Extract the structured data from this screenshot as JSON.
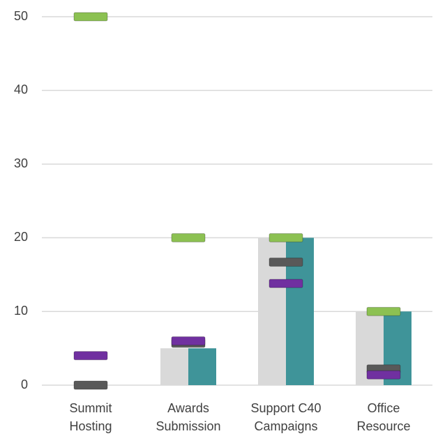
{
  "chart_data": {
    "type": "bar",
    "categories": [
      "Summit Hosting",
      "Awards Submission",
      "Support C40 Campaigns",
      "Office Resource"
    ],
    "series": [
      {
        "style": "bar",
        "color": "#d9d9d9",
        "values": [
          0,
          5,
          20,
          10
        ]
      },
      {
        "style": "bar",
        "color": "#3f9499",
        "values": [
          0,
          5,
          20,
          10
        ]
      },
      {
        "style": "marker",
        "color": "#8cc152",
        "values": [
          50,
          20,
          20,
          10
        ]
      },
      {
        "style": "marker",
        "color": "#595959",
        "values": [
          0,
          5.7,
          16.7,
          2.2
        ]
      },
      {
        "style": "marker",
        "color": "#7030a0",
        "values": [
          4,
          6,
          13.8,
          1.4
        ]
      }
    ],
    "ylim": [
      0,
      50
    ],
    "yticks": [
      0,
      10,
      20,
      30,
      40,
      50
    ],
    "grid": true
  }
}
